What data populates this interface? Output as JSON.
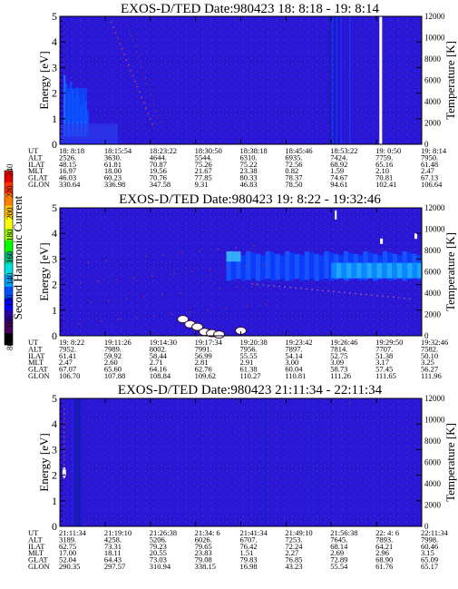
{
  "colorbar": {
    "label": "Second Harmonic Current",
    "ticks": [
      "240",
      "220",
      "200",
      "180",
      "160",
      "140",
      "120",
      "100",
      "80"
    ],
    "colors": [
      "#000000",
      "#4a005a",
      "#2a00a0",
      "#0000ff",
      "#0050ff",
      "#00a0ff",
      "#00e0e0",
      "#00c080",
      "#00ff00",
      "#a0ff00",
      "#ffff00",
      "#ffc000",
      "#ff8000",
      "#ff3000",
      "#e00000"
    ]
  },
  "chart_data": [
    {
      "type": "heatmap",
      "title": "EXOS-D/TED   Date:980423  18: 8:18 - 19: 8:14",
      "ylabel": "Energy [eV]",
      "ylabel_right": "Temperature [K]",
      "yticks": [
        "0",
        "1",
        "2",
        "3",
        "4",
        "5"
      ],
      "yticks_right": [
        "0",
        "2000",
        "4000",
        "6000",
        "8000",
        "10000",
        "12000"
      ],
      "ylim": [
        0,
        5
      ],
      "ylim_right": [
        0,
        12000
      ],
      "table": {
        "labels": [
          "UT",
          "ALT",
          "ILAT",
          "MLT",
          "GLAT",
          "GLON"
        ],
        "columns": [
          [
            "18: 8:18",
            "2526.",
            "48.15",
            "16.97",
            "46.03",
            "330.64"
          ],
          [
            "18:15:54",
            "3630.",
            "61.81",
            "18.00",
            "60.23",
            "336.98"
          ],
          [
            "18:23:22",
            "4644.",
            "70.87",
            "19.56",
            "70.76",
            "347.58"
          ],
          [
            "18:30:50",
            "5544.",
            "75.26",
            "21.67",
            "77.85",
            "9.31"
          ],
          [
            "18:38:18",
            "6310.",
            "75.22",
            "23.38",
            "80.33",
            "46.83"
          ],
          [
            "18:45:46",
            "6935.",
            "72.56",
            "0.82",
            "78.37",
            "78.50"
          ],
          [
            "18:53:22",
            "7424.",
            "68.92",
            "1.59",
            "74.67",
            "94.61"
          ],
          [
            "19: 0:50",
            "7759.",
            "65.16",
            "2.10",
            "70.81",
            "102.41"
          ],
          [
            "19: 8:14",
            "7950.",
            "61.48",
            "2.47",
            "67.13",
            "106.64"
          ]
        ]
      },
      "features": [
        {
          "t": [
            0.01,
            0.08
          ],
          "e": [
            0.4,
            2.7
          ],
          "level": "medium-blue"
        },
        {
          "t": [
            0.0,
            0.16
          ],
          "e": [
            0.0,
            0.8
          ],
          "level": "blue"
        },
        {
          "t": [
            0.745,
            0.775
          ],
          "e": [
            0.0,
            5.0
          ],
          "level": "dark-blue-streaks"
        },
        {
          "t": [
            0.883,
            0.89
          ],
          "e": [
            0.0,
            5.0
          ],
          "level": "data-gap"
        }
      ]
    },
    {
      "type": "heatmap",
      "title": "EXOS-D/TED   Date:980423  19: 8:22 - 19:32:46",
      "ylabel": "Energy [eV]",
      "ylabel_right": "Temperature [K]",
      "yticks": [
        "0",
        "1",
        "2",
        "3",
        "4",
        "5"
      ],
      "yticks_right": [
        "0",
        "2000",
        "4000",
        "6000",
        "8000",
        "10000",
        "12000"
      ],
      "ylim": [
        0,
        5
      ],
      "ylim_right": [
        0,
        12000
      ],
      "table": {
        "labels": [
          "UT",
          "ALT",
          "ILAT",
          "MLT",
          "GLAT",
          "GLON"
        ],
        "columns": [
          [
            "19: 8:22",
            "7952.",
            "61.41",
            "2.47",
            "67.07",
            "106.70"
          ],
          [
            "19:11:26",
            "7989.",
            "59.92",
            "2.60",
            "65.60",
            "107.88"
          ],
          [
            "19:14:30",
            "8002.",
            "58.44",
            "2.71",
            "64.16",
            "108.84"
          ],
          [
            "19:17:34",
            "7991.",
            "56.99",
            "2.81",
            "62.76",
            "109.62"
          ],
          [
            "19:20:38",
            "7956.",
            "55.55",
            "2.91",
            "61.38",
            "110.27"
          ],
          [
            "19:23:42",
            "7897.",
            "54.14",
            "3.00",
            "60.04",
            "110.81"
          ],
          [
            "19:26:46",
            "7814.",
            "52.75",
            "3.09",
            "58.73",
            "111.26"
          ],
          [
            "19:29:50",
            "7707.",
            "51.38",
            "3.17",
            "57.45",
            "111.65"
          ],
          [
            "19:32:46",
            "7582.",
            "50.10",
            "3.25",
            "56.27",
            "111.96"
          ]
        ]
      },
      "features": [
        {
          "t": [
            0.46,
            1.0
          ],
          "e": [
            2.2,
            3.4
          ],
          "level": "blue-band"
        },
        {
          "t": [
            0.75,
            1.0
          ],
          "e": [
            2.2,
            2.8
          ],
          "level": "cyan-band"
        },
        {
          "t": [
            0.3,
            0.53
          ],
          "e": [
            0.0,
            1.1
          ],
          "level": "white-saturated"
        }
      ]
    },
    {
      "type": "heatmap",
      "title": "EXOS-D/TED   Date:980423  21:11:34 - 22:11:34",
      "ylabel": "Energy [eV]",
      "ylabel_right": "Temperature [K]",
      "yticks": [
        "0",
        "1",
        "2",
        "3",
        "4",
        "5"
      ],
      "yticks_right": [
        "0",
        "2000",
        "4000",
        "6000",
        "8000",
        "10000",
        "12000"
      ],
      "ylim": [
        0,
        5
      ],
      "ylim_right": [
        0,
        12000
      ],
      "table": {
        "labels": [
          "UT",
          "ALT",
          "ILAT",
          "MLT",
          "GLAT",
          "GLON"
        ],
        "columns": [
          [
            "21:11:34",
            "3189.",
            "62.75",
            "17.00",
            "52.04",
            "290.35"
          ],
          [
            "21:19:10",
            "4258.",
            "73.31",
            "18.11",
            "64.43",
            "297.57"
          ],
          [
            "21:26:38",
            "5206.",
            "79.23",
            "20.55",
            "73.03",
            "310.94"
          ],
          [
            "21:34: 6",
            "6026.",
            "79.65",
            "23.83",
            "79.08",
            "338.15"
          ],
          [
            "21:41:34",
            "6707.",
            "76.42",
            "1.51",
            "79.83",
            "16.98"
          ],
          [
            "21:49:10",
            "7253.",
            "72.24",
            "2.27",
            "76.85",
            "43.23"
          ],
          [
            "21:56:38",
            "7645.",
            "68.14",
            "2.69",
            "72.89",
            "55.54"
          ],
          [
            "22: 4: 6",
            "7893.",
            "64.21",
            "2.96",
            "68.90",
            "61.76"
          ],
          [
            "22:11:34",
            "7998.",
            "60.46",
            "3.15",
            "65.09",
            "65.17"
          ]
        ]
      },
      "features": [
        {
          "t": [
            0.005,
            0.02
          ],
          "e": [
            1.8,
            2.3
          ],
          "level": "white-saturated"
        },
        {
          "t": [
            0.04,
            0.06
          ],
          "e": [
            0.0,
            5.0
          ],
          "level": "dark-blue-streaks"
        },
        {
          "t": [
            0.56,
            0.58
          ],
          "e": [
            0.0,
            5.0
          ],
          "level": "dark-blue-streaks"
        }
      ]
    }
  ]
}
